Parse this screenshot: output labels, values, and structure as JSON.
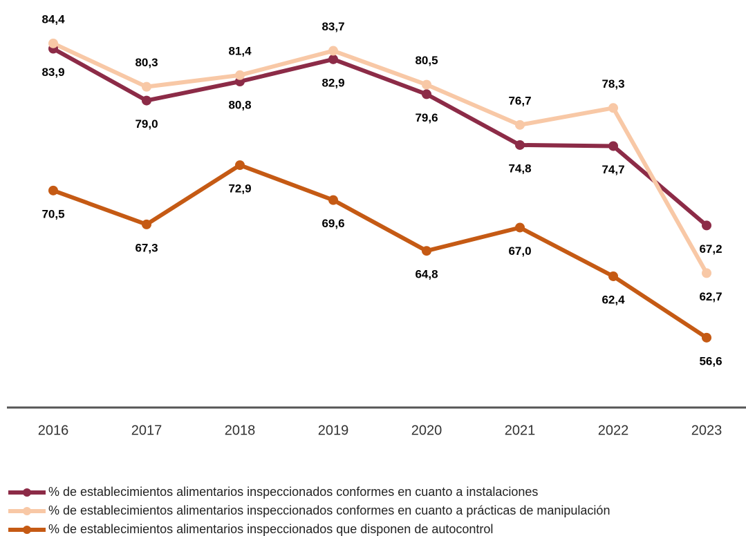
{
  "chart_data": {
    "type": "line",
    "categories": [
      "2016",
      "2017",
      "2018",
      "2019",
      "2020",
      "2021",
      "2022",
      "2023"
    ],
    "series": [
      {
        "name": "% de establecimientos alimentarios inspeccionados conformes en cuanto a instalaciones",
        "color": "#8c2b47",
        "values": [
          83.9,
          79.0,
          80.8,
          82.9,
          79.6,
          74.8,
          74.7,
          67.2
        ],
        "value_labels": [
          "83,9",
          "79,0",
          "80,8",
          "82,9",
          "79,6",
          "74,8",
          "74,7",
          "67,2"
        ]
      },
      {
        "name": "% de establecimientos alimentarios inspeccionados conformes en cuanto a prácticas de manipulación",
        "color": "#f8c8a6",
        "values": [
          84.4,
          80.3,
          81.4,
          83.7,
          80.5,
          76.7,
          78.3,
          62.7
        ],
        "value_labels": [
          "84,4",
          "80,3",
          "81,4",
          "83,7",
          "80,5",
          "76,7",
          "78,3",
          "62,7"
        ]
      },
      {
        "name": "% de establecimientos alimentarios inspeccionados que disponen de autocontrol",
        "color": "#c55a14",
        "values": [
          70.5,
          67.3,
          72.9,
          69.6,
          64.8,
          67.0,
          62.4,
          56.6
        ],
        "value_labels": [
          "70,5",
          "67,3",
          "72,9",
          "69,6",
          "64,8",
          "67,0",
          "62,4",
          "56,6"
        ]
      }
    ],
    "ylim": [
      50,
      88.5
    ]
  }
}
